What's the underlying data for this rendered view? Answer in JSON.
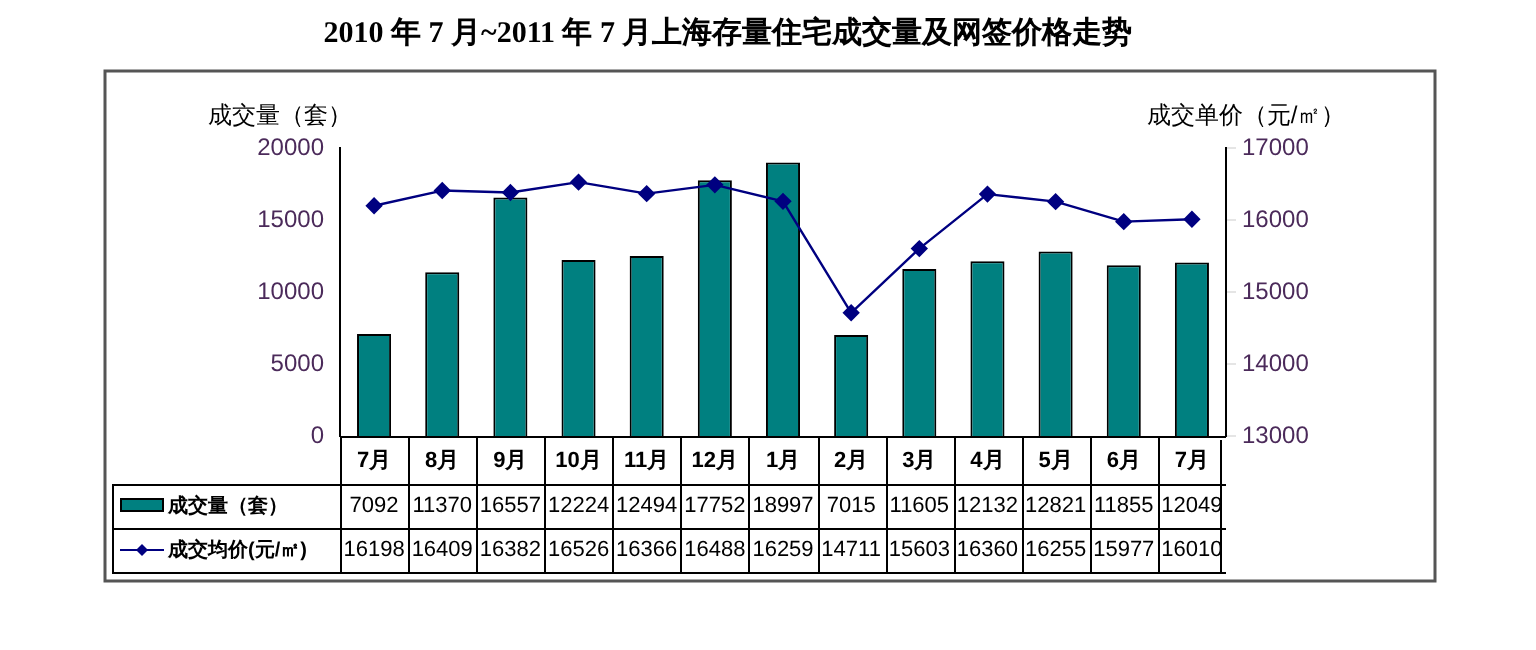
{
  "chart_data": {
    "type": "bar",
    "title": "2010 年 7 月~2011 年 7 月上海存量住宅成交量及网签价格走势",
    "ylabel": "成交量（套）",
    "y2label": "成交单价（元/㎡）",
    "categories": [
      "7月",
      "8月",
      "9月",
      "10月",
      "11月",
      "12月",
      "1月",
      "2月",
      "3月",
      "4月",
      "5月",
      "6月",
      "7月"
    ],
    "series": [
      {
        "name": "成交量（套）",
        "color": "#008080",
        "values": [
          7092,
          11370,
          16557,
          12224,
          12494,
          17752,
          18997,
          7015,
          11605,
          12132,
          12821,
          11855,
          12049
        ]
      },
      {
        "name": "成交均价(元/㎡)",
        "type": "line",
        "axis": "y2",
        "color": "#000080",
        "marker": "diamond",
        "values": [
          16198,
          16409,
          16382,
          16526,
          16366,
          16488,
          16259,
          14711,
          15603,
          16360,
          16255,
          15977,
          16010
        ]
      }
    ],
    "ylim": [
      0,
      20000
    ],
    "yticks": [
      0,
      5000,
      10000,
      15000,
      20000
    ],
    "y2lim": [
      13000,
      17000
    ],
    "y2ticks": [
      13000,
      14000,
      15000,
      16000,
      17000
    ],
    "grid": false,
    "legend": "bottom",
    "data_labels": true
  }
}
